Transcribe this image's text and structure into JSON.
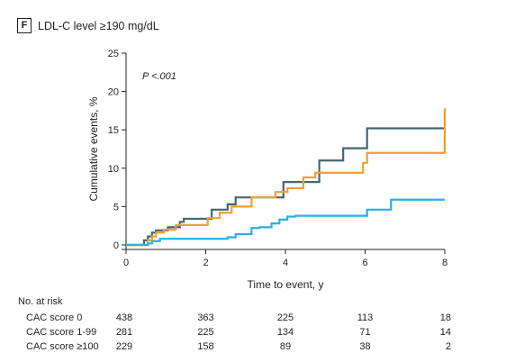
{
  "panel": {
    "letter": "F",
    "title": "LDL-C level ≥190 mg/dL"
  },
  "chart_data": {
    "type": "line",
    "step": true,
    "xlabel": "Time to event, y",
    "ylabel": "Cumulative events, %",
    "xlim": [
      0,
      8
    ],
    "ylim": [
      0,
      25
    ],
    "xticks": [
      "0",
      "2",
      "4",
      "6",
      "8"
    ],
    "yticks": [
      "0",
      "5",
      "10",
      "15",
      "20",
      "25"
    ],
    "annotation": "P <.001",
    "grid": false,
    "series": [
      {
        "color": "#456770",
        "x": [
          0,
          0.45,
          0.55,
          0.65,
          0.75,
          1.05,
          1.35,
          1.45,
          2.15,
          2.55,
          2.75,
          3.35,
          3.95,
          4.35,
          4.85,
          5.05,
          5.45,
          6.05,
          8
        ],
        "y": [
          0,
          0.6,
          1.1,
          1.6,
          1.9,
          2.3,
          3.0,
          3.4,
          4.6,
          5.3,
          6.2,
          6.2,
          8.2,
          8.2,
          11.0,
          11.0,
          12.6,
          15.2,
          15.2
        ]
      },
      {
        "color": "#f0a030",
        "x": [
          0,
          0.55,
          0.65,
          0.75,
          0.95,
          1.25,
          2.05,
          2.35,
          2.65,
          3.15,
          3.75,
          4.05,
          4.15,
          4.45,
          4.75,
          5.05,
          5.95,
          6.05,
          7.95,
          8
        ],
        "y": [
          0,
          0.6,
          1.1,
          1.6,
          2.0,
          2.6,
          3.5,
          4.2,
          5.0,
          6.2,
          6.9,
          7.4,
          7.4,
          8.8,
          9.4,
          9.4,
          10.7,
          12.0,
          12.0,
          17.8
        ]
      },
      {
        "color": "#27b1e0",
        "x": [
          0,
          0.55,
          0.65,
          0.85,
          1.95,
          2.55,
          2.75,
          3.15,
          3.35,
          3.65,
          3.85,
          4.05,
          4.25,
          6.05,
          6.65,
          8
        ],
        "y": [
          0,
          0.2,
          0.5,
          0.8,
          0.8,
          1.0,
          1.4,
          2.2,
          2.3,
          2.8,
          3.3,
          3.7,
          3.8,
          4.6,
          5.9,
          5.9
        ]
      }
    ],
    "at_risk": {
      "header": "No. at risk",
      "times": [
        0,
        2,
        4,
        6,
        8
      ],
      "rows": [
        {
          "label": "CAC score 0",
          "values": [
            "438",
            "363",
            "225",
            "113",
            "18"
          ]
        },
        {
          "label": "CAC score 1-99",
          "values": [
            "281",
            "225",
            "134",
            "71",
            "14"
          ]
        },
        {
          "label": "CAC score ≥100",
          "values": [
            "229",
            "158",
            "89",
            "38",
            "2"
          ]
        }
      ]
    }
  }
}
